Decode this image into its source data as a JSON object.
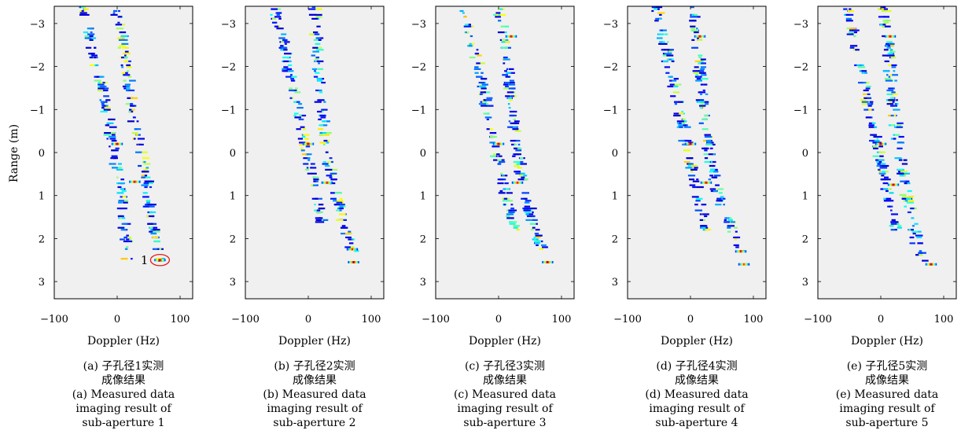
{
  "figure": {
    "xlabel": "Doppler (Hz)",
    "ylabel": "Range (m)"
  },
  "chart_data": [
    {
      "type": "heatmap",
      "title": "",
      "xlabel": "Doppler (Hz)",
      "ylabel": "Range (m)",
      "xlim": [
        -100,
        120
      ],
      "ylim": [
        -3.4,
        3.4
      ],
      "y_inverted": true,
      "xticks": [
        -100,
        0,
        100
      ],
      "yticks": [
        -3,
        -2,
        -1,
        0,
        1,
        2,
        3
      ],
      "background_color": "#f0f0f0",
      "colormap": "jet",
      "track_left": [
        [
          -3.4,
          -55
        ],
        [
          -2.5,
          -40
        ],
        [
          -1.2,
          -20
        ],
        [
          0.4,
          0
        ],
        [
          2.5,
          18
        ]
      ],
      "track_right": [
        [
          -3.4,
          0
        ],
        [
          -2.0,
          15
        ],
        [
          -0.5,
          30
        ],
        [
          0.7,
          48
        ],
        [
          1.9,
          58
        ],
        [
          2.5,
          70
        ]
      ],
      "hotspots": [
        [
          -0.2,
          0,
          1.0
        ],
        [
          0.68,
          28,
          0.95
        ],
        [
          2.5,
          68,
          1.0
        ]
      ],
      "annotation": {
        "text": "1",
        "x": 68,
        "y": 2.5,
        "rx": 15,
        "ry": 0.13
      },
      "caption_cn_1": "(a) 子孔径1实测",
      "caption_cn_2": "成像结果",
      "caption_en_1": "(a) Measured data",
      "caption_en_2": "imaging result of",
      "caption_en_3": "sub-aperture 1"
    },
    {
      "type": "heatmap",
      "title": "",
      "xlabel": "Doppler (Hz)",
      "ylabel": "",
      "xlim": [
        -100,
        120
      ],
      "ylim": [
        -3.4,
        3.4
      ],
      "y_inverted": true,
      "xticks": [
        -100,
        0,
        100
      ],
      "yticks": [
        -3,
        -2,
        -1,
        0,
        1,
        2,
        3
      ],
      "background_color": "#f0f0f0",
      "colormap": "jet",
      "track_left": [
        [
          -3.4,
          -55
        ],
        [
          -2.5,
          -40
        ],
        [
          -1.2,
          -20
        ],
        [
          0.2,
          0
        ],
        [
          1.8,
          25
        ]
      ],
      "track_right": [
        [
          -3.4,
          10
        ],
        [
          -2.0,
          15
        ],
        [
          -0.5,
          25
        ],
        [
          0.7,
          38
        ],
        [
          2.3,
          72
        ]
      ],
      "hotspots": [
        [
          -0.2,
          0,
          1.0
        ],
        [
          0.7,
          30,
          0.9
        ],
        [
          2.25,
          70,
          0.85
        ],
        [
          2.55,
          72,
          1.0
        ]
      ],
      "caption_cn_1": "(b) 子孔径2实测",
      "caption_cn_2": "成像结果",
      "caption_en_1": "(b) Measured data",
      "caption_en_2": "imaging result of",
      "caption_en_3": "sub-aperture 2"
    },
    {
      "type": "heatmap",
      "title": "",
      "xlabel": "Doppler (Hz)",
      "ylabel": "",
      "xlim": [
        -100,
        120
      ],
      "ylim": [
        -3.4,
        3.4
      ],
      "y_inverted": true,
      "xticks": [
        -100,
        0,
        100
      ],
      "yticks": [
        -3,
        -2,
        -1,
        0,
        1,
        2,
        3
      ],
      "background_color": "#f0f0f0",
      "colormap": "jet",
      "track_left": [
        [
          -3.4,
          -55
        ],
        [
          -2.5,
          -40
        ],
        [
          -1.2,
          -20
        ],
        [
          0.2,
          0
        ],
        [
          1.8,
          25
        ]
      ],
      "track_right": [
        [
          -3.4,
          0
        ],
        [
          -2.0,
          15
        ],
        [
          -0.5,
          25
        ],
        [
          0.7,
          38
        ],
        [
          2.3,
          70
        ]
      ],
      "hotspots": [
        [
          -2.7,
          20,
          0.95
        ],
        [
          -0.2,
          0,
          1.0
        ],
        [
          0.7,
          30,
          0.9
        ],
        [
          2.55,
          78,
          1.0
        ]
      ],
      "caption_cn_1": "(c) 子孔径3实测",
      "caption_cn_2": "成像结果",
      "caption_en_1": "(c) Measured data",
      "caption_en_2": "imaging result of",
      "caption_en_3": "sub-aperture 3"
    },
    {
      "type": "heatmap",
      "title": "",
      "xlabel": "Doppler (Hz)",
      "ylabel": "",
      "xlim": [
        -100,
        120
      ],
      "ylim": [
        -3.4,
        3.4
      ],
      "y_inverted": true,
      "xticks": [
        -100,
        0,
        100
      ],
      "yticks": [
        -3,
        -2,
        -1,
        0,
        1,
        2,
        3
      ],
      "background_color": "#f0f0f0",
      "colormap": "jet",
      "track_left": [
        [
          -3.4,
          -55
        ],
        [
          -2.5,
          -40
        ],
        [
          -1.2,
          -20
        ],
        [
          0.2,
          0
        ],
        [
          1.8,
          25
        ]
      ],
      "track_right": [
        [
          -3.4,
          5
        ],
        [
          -2.0,
          15
        ],
        [
          -0.5,
          25
        ],
        [
          0.7,
          38
        ],
        [
          2.3,
          80
        ]
      ],
      "hotspots": [
        [
          -2.7,
          15,
          0.95
        ],
        [
          -0.2,
          0,
          1.0
        ],
        [
          0.7,
          25,
          0.95
        ],
        [
          2.3,
          80,
          0.9
        ],
        [
          2.6,
          85,
          0.85
        ]
      ],
      "caption_cn_1": "(d) 子孔径4实测",
      "caption_cn_2": "成像结果",
      "caption_en_1": "(d) Measured data",
      "caption_en_2": "imaging result of",
      "caption_en_3": "sub-aperture 4"
    },
    {
      "type": "heatmap",
      "title": "",
      "xlabel": "Doppler (Hz)",
      "ylabel": "",
      "xlim": [
        -100,
        120
      ],
      "ylim": [
        -3.4,
        3.4
      ],
      "y_inverted": true,
      "xticks": [
        -100,
        0,
        100
      ],
      "yticks": [
        -3,
        -2,
        -1,
        0,
        1,
        2,
        3
      ],
      "background_color": "#f0f0f0",
      "colormap": "jet",
      "track_left": [
        [
          -3.4,
          -55
        ],
        [
          -2.5,
          -40
        ],
        [
          -1.2,
          -20
        ],
        [
          0.2,
          0
        ],
        [
          1.8,
          25
        ]
      ],
      "track_right": [
        [
          -3.4,
          5
        ],
        [
          -2.0,
          15
        ],
        [
          -0.5,
          25
        ],
        [
          0.7,
          38
        ],
        [
          2.3,
          60
        ],
        [
          2.6,
          80
        ]
      ],
      "hotspots": [
        [
          -2.7,
          15,
          0.95
        ],
        [
          -0.2,
          0,
          1.0
        ],
        [
          0.75,
          20,
          1.0
        ],
        [
          2.6,
          80,
          1.0
        ]
      ],
      "caption_cn_1": "(e) 子孔径5实测",
      "caption_cn_2": "成像结果",
      "caption_en_1": "(e) Measured data",
      "caption_en_2": "imaging result of",
      "caption_en_3": "sub-aperture 5"
    }
  ]
}
